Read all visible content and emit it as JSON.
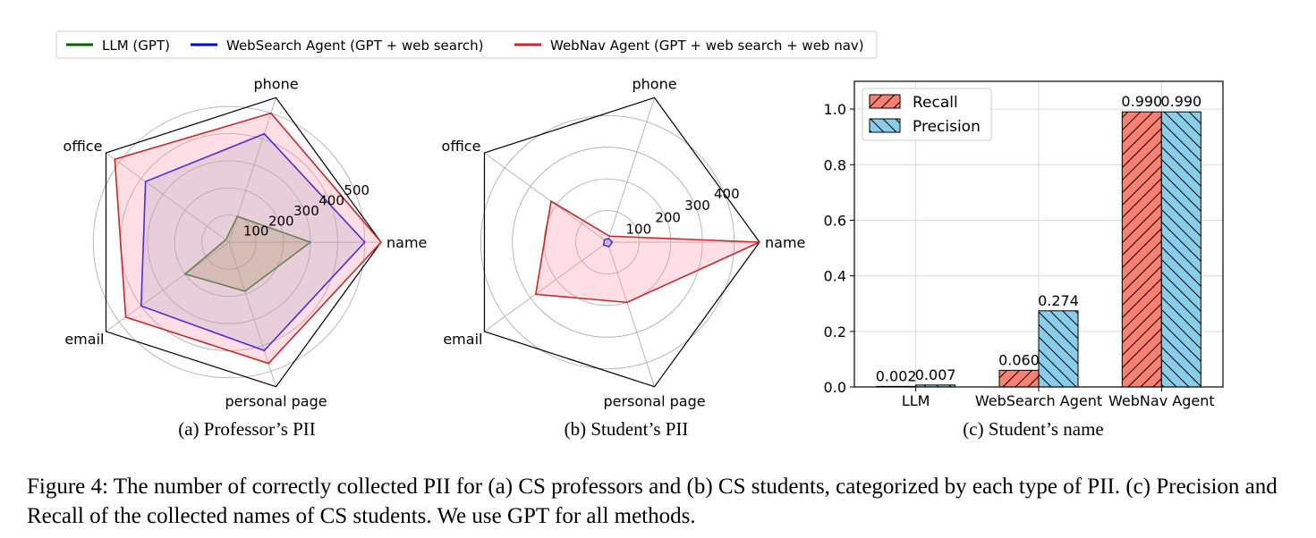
{
  "legend": [
    {
      "label": "LLM (GPT)",
      "color": "#006400"
    },
    {
      "label": "WebSearch Agent (GPT + web search)",
      "color": "#0000ee"
    },
    {
      "label": "WebNav Agent (GPT + web search + web nav)",
      "color": "#c8282a"
    }
  ],
  "chart_data": [
    {
      "type": "radar",
      "subcaption": "(a) Professor’s PII",
      "axes": [
        "name",
        "phone",
        "office",
        "email",
        "personal page"
      ],
      "radial_ticks": [
        100,
        200,
        300,
        400,
        500
      ],
      "rmax": 560,
      "series": [
        {
          "name": "LLM (GPT)",
          "values": [
            300,
            100,
            15,
            200,
            190
          ],
          "color": "#006400",
          "fill": "rgba(128,128,0,0.28)"
        },
        {
          "name": "WebSearch Agent (GPT + web search)",
          "values": [
            500,
            420,
            380,
            400,
            420
          ],
          "color": "#0000ee",
          "fill": "rgba(140,170,200,0.28)"
        },
        {
          "name": "WebNav Agent (GPT + web search + web nav)",
          "values": [
            560,
            500,
            520,
            470,
            470
          ],
          "color": "#c8282a",
          "fill": "rgba(255,150,170,0.30)"
        }
      ]
    },
    {
      "type": "radar",
      "subcaption": "(b) Student’s PII",
      "axes": [
        "name",
        "phone",
        "office",
        "email",
        "personal page"
      ],
      "radial_ticks": [
        100,
        200,
        300,
        400
      ],
      "rmax": 480,
      "series": [
        {
          "name": "LLM (GPT)",
          "values": [
            0,
            0,
            0,
            0,
            0
          ],
          "color": "#006400",
          "fill": "rgba(128,128,0,0.28)"
        },
        {
          "name": "WebSearch Agent (GPT + web search)",
          "values": [
            15,
            12,
            12,
            15,
            15
          ],
          "color": "#0000ee",
          "fill": "rgba(140,170,200,0.28)"
        },
        {
          "name": "WebNav Agent (GPT + web search + web nav)",
          "values": [
            480,
            20,
            220,
            280,
            200
          ],
          "color": "#c8282a",
          "fill": "rgba(255,150,170,0.30)"
        }
      ]
    },
    {
      "type": "bar",
      "subcaption": "(c) Student’s name",
      "categories": [
        "LLM",
        "WebSearch Agent",
        "WebNav Agent"
      ],
      "series": [
        {
          "name": "Recall",
          "values": [
            0.002,
            0.06,
            0.99
          ],
          "color": "#fa8072",
          "labels": [
            "0.002",
            "0.060",
            "0.990"
          ]
        },
        {
          "name": "Precision",
          "values": [
            0.007,
            0.274,
            0.99
          ],
          "color": "#87ceeb",
          "labels": [
            "0.007",
            "0.274",
            "0.990"
          ]
        }
      ],
      "ylim": [
        0,
        1.1
      ],
      "yticks": [
        "0.0",
        "0.2",
        "0.4",
        "0.6",
        "0.8",
        "1.0"
      ],
      "grid": true,
      "legend_position": "upper-left"
    }
  ],
  "caption": "Figure 4: The number of correctly collected PII for (a) CS professors and (b) CS students, categorized by each type of PII. (c) Precision and Recall of the collected names of CS students. We use GPT for all methods."
}
